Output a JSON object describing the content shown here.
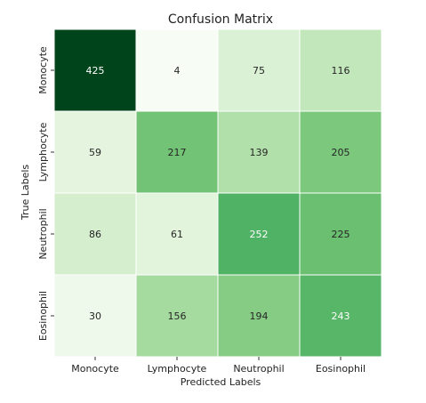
{
  "chart_data": {
    "type": "heatmap",
    "title": "Confusion Matrix",
    "xlabel": "Predicted Labels",
    "ylabel": "True Labels",
    "x_categories": [
      "Monocyte",
      "Lymphocyte",
      "Neutrophil",
      "Eosinophil"
    ],
    "y_categories": [
      "Monocyte",
      "Lymphocyte",
      "Neutrophil",
      "Eosinophil"
    ],
    "values": [
      [
        425,
        4,
        75,
        116
      ],
      [
        59,
        217,
        139,
        205
      ],
      [
        86,
        61,
        252,
        225
      ],
      [
        30,
        156,
        194,
        243
      ]
    ],
    "colormap": "Greens",
    "color_min": 4,
    "color_max": 425,
    "grid_line_color": "#ffffff"
  }
}
